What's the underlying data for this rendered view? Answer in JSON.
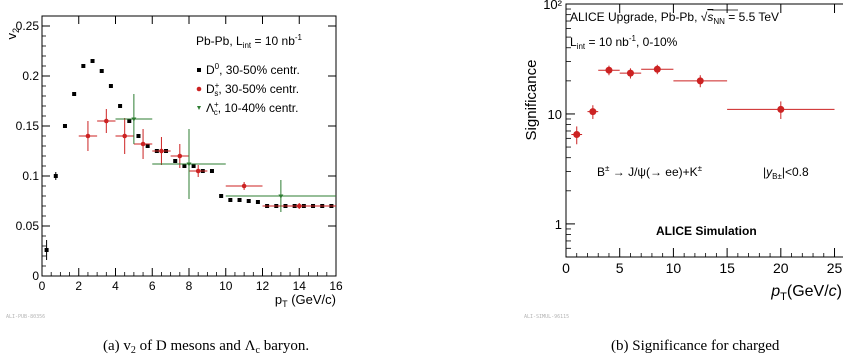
{
  "figure_a": {
    "caption": "(a) v₂ of D mesons and Λc baryon.",
    "watermark": "ALI-PUB-80356",
    "legend_title": "Pb-Pb, L_int = 10 nb⁻¹",
    "legend": [
      "D⁰, 30-50% centr.",
      "Dₛ⁺, 30-50% centr.",
      "Λc⁺, 10-40% centr."
    ]
  },
  "figure_b": {
    "caption": "(b) Significance for charged",
    "watermark": "ALI-SIMUL-96115",
    "label_line1": "ALICE Upgrade, Pb-Pb, √sNN = 5.5 TeV",
    "label_line2": "L_int = 10 nb⁻¹, 0-10%",
    "decay": "B± → J/ψ(→ ee)+K±",
    "rapidity": "|y_B±|<0.8",
    "simulation": "ALICE Simulation"
  },
  "chart_data": [
    {
      "type": "scatter",
      "xlabel": "p_T (GeV/c)",
      "ylabel": "v₂",
      "xlim": [
        0,
        16
      ],
      "ylim": [
        0,
        0.26
      ],
      "xticks": [
        "0",
        "2",
        "4",
        "6",
        "8",
        "10",
        "12",
        "14",
        "16"
      ],
      "yticks": [
        "0",
        "0.05",
        "0.1",
        "0.15",
        "0.2",
        "0.25"
      ],
      "series": [
        {
          "name": "D⁰, 30-50% centr.",
          "marker": "square",
          "color": "#000000",
          "x": [
            0.25,
            0.75,
            1.25,
            1.75,
            2.25,
            2.75,
            3.25,
            3.75,
            4.25,
            4.75,
            5.25,
            5.75,
            6.25,
            6.75,
            7.25,
            7.75,
            8.25,
            8.75,
            9.25,
            9.75,
            10.25,
            10.75,
            11.25,
            11.75,
            12.25,
            12.75,
            13.25,
            13.75,
            14.25,
            14.75,
            15.25,
            15.75
          ],
          "y": [
            0.026,
            0.1,
            0.15,
            0.182,
            0.21,
            0.215,
            0.205,
            0.19,
            0.17,
            0.155,
            0.14,
            0.13,
            0.125,
            0.125,
            0.115,
            0.11,
            0.11,
            0.105,
            0.105,
            0.08,
            0.076,
            0.076,
            0.075,
            0.074,
            0.07,
            0.07,
            0.07,
            0.07,
            0.07,
            0.07,
            0.07,
            0.07
          ],
          "err": [
            0.01,
            0.004,
            0,
            0,
            0,
            0,
            0,
            0,
            0,
            0,
            0,
            0,
            0,
            0,
            0,
            0,
            0,
            0,
            0,
            0,
            0,
            0,
            0,
            0,
            0,
            0,
            0,
            0,
            0,
            0,
            0,
            0
          ]
        },
        {
          "name": "Dₛ⁺, 30-50% centr.",
          "marker": "circle",
          "color": "#cc2222",
          "x": [
            2.5,
            3.5,
            4.5,
            5.5,
            6.5,
            7.5,
            8.5,
            11,
            14
          ],
          "y": [
            0.14,
            0.155,
            0.14,
            0.132,
            0.125,
            0.12,
            0.105,
            0.09,
            0.07
          ],
          "xerr": [
            0.5,
            0.5,
            0.5,
            0.5,
            0.5,
            0.5,
            0.5,
            1,
            2
          ],
          "yerr": [
            0.015,
            0.012,
            0.018,
            0.015,
            0.014,
            0.012,
            0.006,
            0.004,
            0.003
          ]
        },
        {
          "name": "Λc⁺, 10-40% centr.",
          "marker": "triangle",
          "color": "#2e7d32",
          "x": [
            5,
            8,
            13
          ],
          "y": [
            0.157,
            0.112,
            0.08
          ],
          "xerr": [
            1,
            2,
            3
          ],
          "yerr": [
            0.025,
            0.035,
            0.016
          ]
        }
      ]
    },
    {
      "type": "scatter",
      "xlabel": "p_T(GeV/c)",
      "ylabel": "Significance",
      "yscale": "log",
      "xlim": [
        0,
        27
      ],
      "ylim": [
        0.5,
        100
      ],
      "xticks": [
        "0",
        "5",
        "10",
        "15",
        "20",
        "25"
      ],
      "yticks": [
        "1",
        "10",
        "10²"
      ],
      "series": [
        {
          "color": "#cc2222",
          "marker": "circle",
          "x": [
            1,
            2.5,
            4,
            6,
            8.5,
            12.5,
            20
          ],
          "y": [
            6.5,
            10.5,
            25,
            23.5,
            25.5,
            20,
            11
          ],
          "xerr": [
            0.5,
            0.5,
            1,
            1,
            1.5,
            2.5,
            5
          ],
          "yerr": [
            1.2,
            1.5,
            2.5,
            2.5,
            2.5,
            2.5,
            2
          ]
        }
      ]
    }
  ]
}
